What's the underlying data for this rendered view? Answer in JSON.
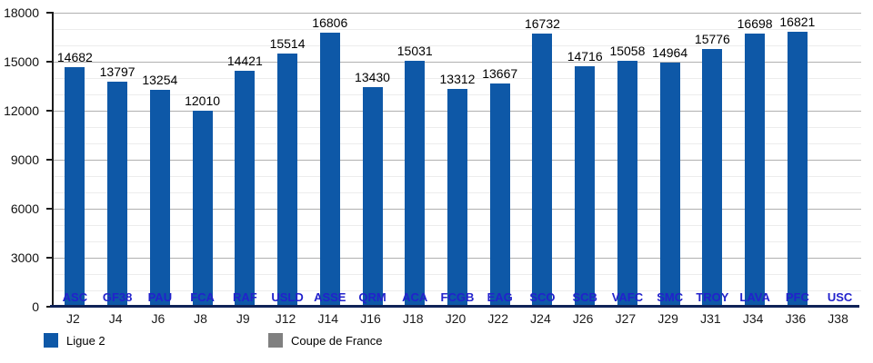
{
  "chart_data": {
    "type": "bar",
    "categories": [
      "J2",
      "J4",
      "J6",
      "J8",
      "J9",
      "J12",
      "J14",
      "J16",
      "J18",
      "J20",
      "J22",
      "J24",
      "J26",
      "J27",
      "J29",
      "J31",
      "J34",
      "J36",
      "J38"
    ],
    "bar_labels": [
      "ASC",
      "GF38",
      "PAU",
      "FCA",
      "RAF",
      "USLD",
      "ASSE",
      "QRM",
      "ACA",
      "FCGB",
      "EAG",
      "SCO",
      "SCB",
      "VAFC",
      "SMC",
      "TROY",
      "LAVA",
      "PFC",
      "USC"
    ],
    "values": [
      14682,
      13797,
      13254,
      12010,
      14421,
      15514,
      16806,
      13430,
      15031,
      13312,
      13667,
      16732,
      14716,
      15058,
      14964,
      15776,
      16698,
      16821,
      null
    ],
    "ylim": [
      0,
      18000
    ],
    "y_major_ticks": [
      0,
      3000,
      6000,
      9000,
      12000,
      15000,
      18000
    ],
    "y_minor_step": 1000,
    "grid": true,
    "legend_position": "bottom",
    "legend": [
      {
        "label": "Ligue 2",
        "color": "#0e58a7"
      },
      {
        "label": "Coupe de France",
        "color": "#808080"
      }
    ],
    "bar_color": "#0e58a7",
    "bar_label_color": "#2222cc"
  }
}
